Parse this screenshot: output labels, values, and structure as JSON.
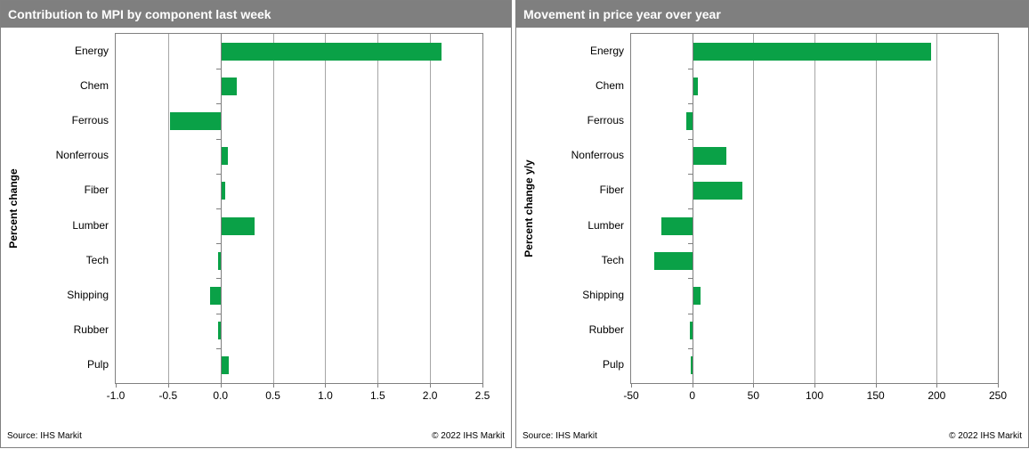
{
  "accent_color": "#0aa147",
  "header_color": "#7f7f7f",
  "grid_color": "#a6a6a6",
  "panels": [
    {
      "source": "Source: IHS Markit",
      "copyright": "© 2022  IHS Markit"
    },
    {
      "source": "Source: IHS Markit",
      "copyright": "© 2022  IHS Markit"
    }
  ],
  "chart_data": [
    {
      "type": "bar",
      "orientation": "horizontal",
      "title": "Contribution to MPI by component last week",
      "ylabel": "Percent change",
      "xlabel": "",
      "categories": [
        "Energy",
        "Chem",
        "Ferrous",
        "Nonferrous",
        "Fiber",
        "Lumber",
        "Tech",
        "Shipping",
        "Rubber",
        "Pulp"
      ],
      "values": [
        2.1,
        0.15,
        -0.48,
        0.06,
        0.04,
        0.32,
        -0.02,
        -0.1,
        -0.02,
        0.07
      ],
      "xlim": [
        -1.0,
        2.5
      ],
      "xticks": [
        -1.0,
        -0.5,
        0.0,
        0.5,
        1.0,
        1.5,
        2.0,
        2.5
      ],
      "xtick_labels": [
        "-1.0",
        "-0.5",
        "0.0",
        "0.5",
        "1.0",
        "1.5",
        "2.0",
        "2.5"
      ],
      "grid": true,
      "legend": false,
      "bar_color": "#0aa147"
    },
    {
      "type": "bar",
      "orientation": "horizontal",
      "title": "Movement in price year over year",
      "ylabel": "Percent change y/y",
      "xlabel": "",
      "categories": [
        "Energy",
        "Chem",
        "Ferrous",
        "Nonferrous",
        "Fiber",
        "Lumber",
        "Tech",
        "Shipping",
        "Rubber",
        "Pulp"
      ],
      "values": [
        195,
        4,
        -5,
        27,
        40,
        -25,
        -31,
        6,
        -2,
        -1
      ],
      "xlim": [
        -50,
        250
      ],
      "xticks": [
        -50,
        0,
        50,
        100,
        150,
        200,
        250
      ],
      "xtick_labels": [
        "-50",
        "0",
        "50",
        "100",
        "150",
        "200",
        "250"
      ],
      "grid": true,
      "legend": false,
      "bar_color": "#0aa147"
    }
  ]
}
